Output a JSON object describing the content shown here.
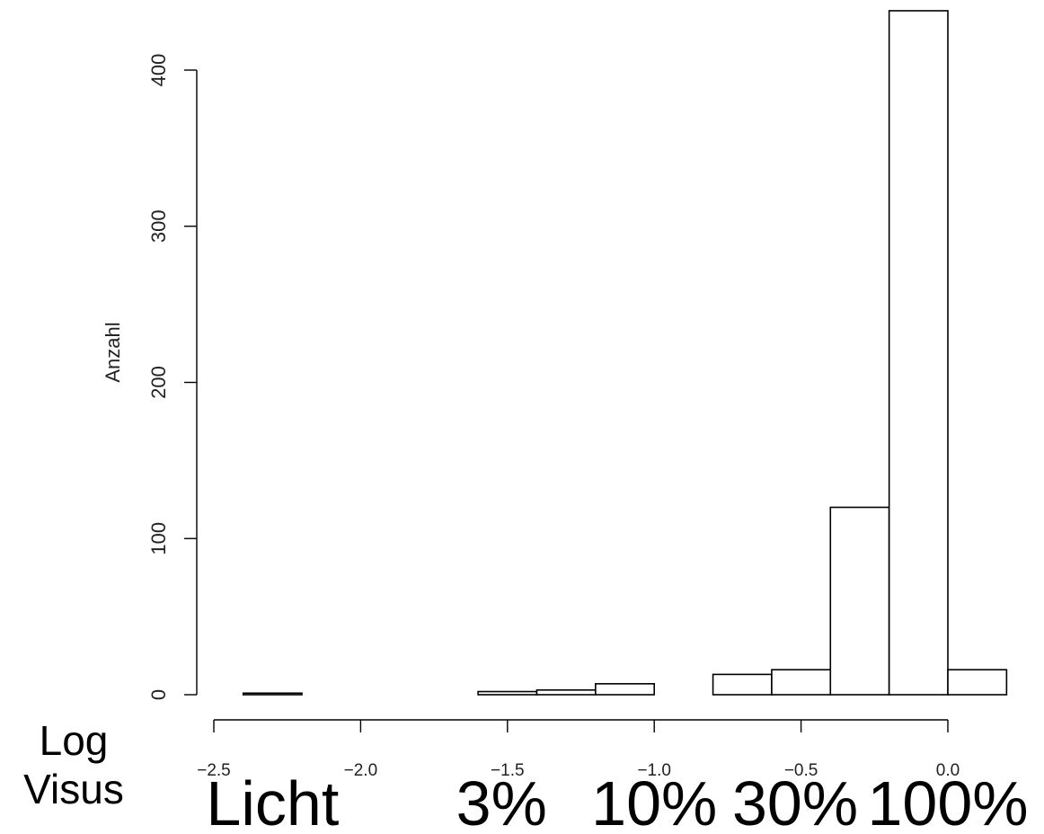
{
  "chart_data": {
    "type": "bar",
    "title": "",
    "xlabel": "",
    "ylabel": "Anzahl",
    "bin_edges": [
      -2.4,
      -2.2,
      -2.0,
      -1.8,
      -1.6,
      -1.4,
      -1.2,
      -1.0,
      -0.8,
      -0.6,
      -0.4,
      -0.2,
      0.0,
      0.2
    ],
    "values": [
      1,
      0,
      0,
      0,
      2,
      3,
      7,
      0,
      13,
      16,
      120,
      438,
      16
    ],
    "xlim": [
      -2.5,
      0.0
    ],
    "ylim": [
      0,
      400
    ],
    "x_ticks": [
      -2.5,
      -2.0,
      -1.5,
      -1.0,
      -0.5,
      0.0
    ],
    "x_tick_labels": [
      "−2.5",
      "−2.0",
      "−1.5",
      "−1.0",
      "−0.5",
      "0.0"
    ],
    "y_ticks": [
      0,
      100,
      200,
      300,
      400
    ],
    "y_tick_labels": [
      "0",
      "100",
      "200",
      "300",
      "400"
    ],
    "grid": false,
    "bar_fill": "#ffffff",
    "bar_stroke": "#000000"
  },
  "annotations": {
    "axis_caption_line1": "Log",
    "axis_caption_line2": "Visus",
    "visus_labels": [
      {
        "text": "Licht",
        "at": -2.3
      },
      {
        "text": "3%",
        "at": -1.52
      },
      {
        "text": "10%",
        "at": -1.0
      },
      {
        "text": "30%",
        "at": -0.52
      },
      {
        "text": "100%",
        "at": 0.0
      }
    ]
  }
}
